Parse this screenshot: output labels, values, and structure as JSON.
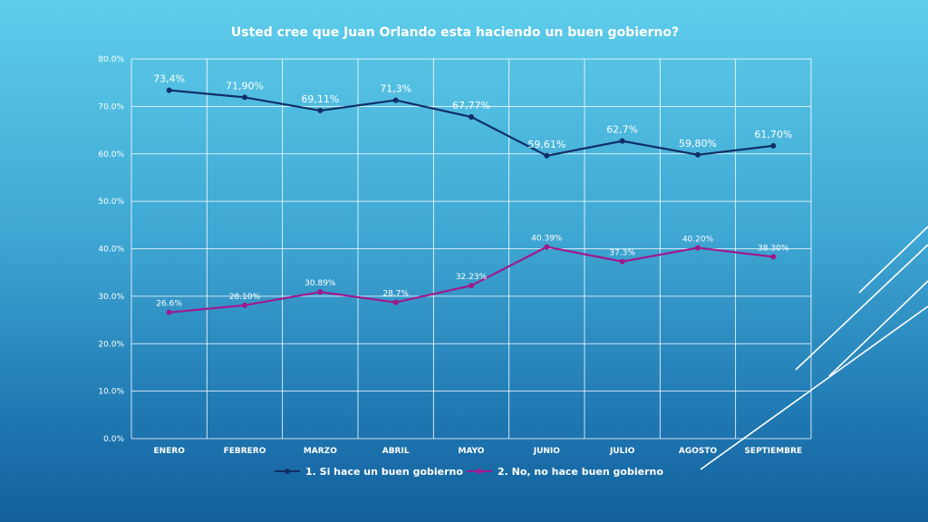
{
  "colors": {
    "series1": "#0f2f66",
    "series2": "#a0198c",
    "grid": "#ffffff",
    "text": "#ffffff"
  },
  "chart_data": {
    "type": "line",
    "title": "Usted cree que Juan Orlando esta haciendo un buen gobierno?",
    "categories": [
      "ENERO",
      "FEBRERO",
      "MARZO",
      "ABRIL",
      "MAYO",
      "JUNIO",
      "JULIO",
      "AGOSTO",
      "SEPTIEMBRE"
    ],
    "ylim": [
      0,
      80
    ],
    "yticks": [
      "0.0%",
      "10.0%",
      "20.0%",
      "30.0%",
      "40.0%",
      "50.0%",
      "60.0%",
      "70.0%",
      "80.0%"
    ],
    "grid": true,
    "legend_position": "bottom",
    "series": [
      {
        "name": "1. Si hace un buen gobierno",
        "values": [
          73.4,
          71.9,
          69.11,
          71.3,
          67.77,
          59.61,
          62.7,
          59.8,
          61.7
        ],
        "labels": [
          "73,4%",
          "71,90%",
          "69,11%",
          "71,3%",
          "67,77%",
          "59,61%",
          "62,7%",
          "59,80%",
          "61,70%"
        ]
      },
      {
        "name": "2. No, no hace buen gobierno",
        "values": [
          26.6,
          28.1,
          30.89,
          28.7,
          32.23,
          40.39,
          37.3,
          40.2,
          38.3
        ],
        "labels": [
          "26.6%",
          "28.10%",
          "30.89%",
          "28.7%",
          "32.23%",
          "40.39%",
          "37.3%",
          "40.20%",
          "38.30%"
        ]
      }
    ]
  }
}
